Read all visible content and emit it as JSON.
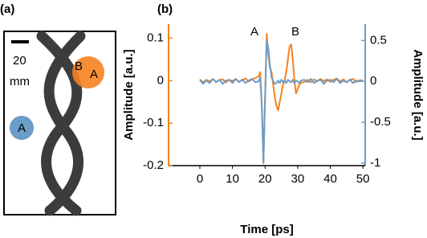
{
  "panel_a": {
    "label": "(a)",
    "scale_value": "20",
    "scale_unit": "mm",
    "circle_blue": "A",
    "circle_orange": [
      "B",
      "A"
    ]
  },
  "chart_data": {
    "type": "line",
    "panel_label": "(b)",
    "x_label": "Time [ps]",
    "y_label": "Amplitude [a.u.]",
    "y2_label": "Amplitude [a.u.]",
    "annotations": [
      "A",
      "B"
    ],
    "xlim": [
      -9.6,
      50.7
    ],
    "xticks": [
      0,
      10,
      20,
      30,
      40,
      50
    ],
    "ylim": [
      -0.2,
      0.133
    ],
    "yticks": [
      0.1,
      0,
      -0.1,
      -0.2
    ],
    "y2lim": [
      -1.03,
      0.7
    ],
    "y2ticks": [
      0.5,
      0,
      -0.5,
      -1
    ],
    "x": [
      0,
      1,
      2,
      3,
      4,
      5,
      6,
      7,
      8,
      9,
      10,
      11,
      12,
      13,
      14,
      15,
      16,
      17,
      18,
      18.5,
      19,
      19.5,
      20,
      20.5,
      21,
      21.5,
      22,
      22.5,
      23,
      23.5,
      24,
      24.5,
      25,
      25.5,
      26,
      26.5,
      27,
      27.5,
      28,
      28.5,
      29,
      29.5,
      30,
      30.5,
      31,
      32,
      33,
      34,
      35,
      36,
      37,
      38,
      39,
      40,
      41,
      42,
      43,
      44,
      45,
      46,
      47,
      48,
      49,
      50
    ],
    "series": [
      {
        "color": "#f58220",
        "axis": "y",
        "values": [
          0.003,
          -0.004,
          0.002,
          -0.002,
          0.004,
          -0.003,
          0.001,
          0.003,
          -0.004,
          0.002,
          -0.001,
          0.004,
          -0.003,
          0.002,
          0.005,
          -0.002,
          0.003,
          0.006,
          0.01,
          0.02,
          -0.06,
          -0.19,
          -0.04,
          0.11,
          0.06,
          0.03,
          0.02,
          -0.01,
          -0.04,
          -0.06,
          -0.07,
          -0.05,
          -0.03,
          -0.01,
          0.0,
          0.02,
          0.05,
          0.08,
          0.085,
          0.05,
          0.0,
          -0.03,
          -0.02,
          -0.01,
          -0.005,
          -0.003,
          0.002,
          -0.004,
          0.003,
          -0.002,
          0.004,
          -0.001,
          0.003,
          -0.003,
          0.002,
          0.005,
          -0.002,
          0.003,
          -0.004,
          0.002,
          0.004,
          -0.003,
          0.001,
          0.0
        ]
      },
      {
        "color": "#6b9dc8",
        "axis": "y2",
        "values": [
          0.02,
          -0.03,
          0.01,
          -0.02,
          0.03,
          -0.01,
          0.02,
          -0.03,
          0.01,
          0.02,
          -0.02,
          0.03,
          -0.01,
          0.02,
          -0.02,
          0.01,
          0.03,
          -0.01,
          0.0,
          0.05,
          -0.3,
          -1.0,
          -0.2,
          0.5,
          0.4,
          0.2,
          0.05,
          0.0,
          -0.03,
          -0.02,
          0.01,
          -0.02,
          0.02,
          -0.01,
          0.01,
          -0.02,
          0.02,
          0.0,
          -0.01,
          0.02,
          -0.02,
          0.01,
          0.0,
          -0.02,
          0.01,
          0.02,
          -0.01,
          0.03,
          -0.02,
          0.01,
          0.02,
          -0.03,
          0.01,
          0.02,
          -0.01,
          0.03,
          -0.02,
          0.01,
          -0.01,
          0.02,
          -0.02,
          0.01,
          0.0,
          0.01
        ]
      }
    ]
  }
}
